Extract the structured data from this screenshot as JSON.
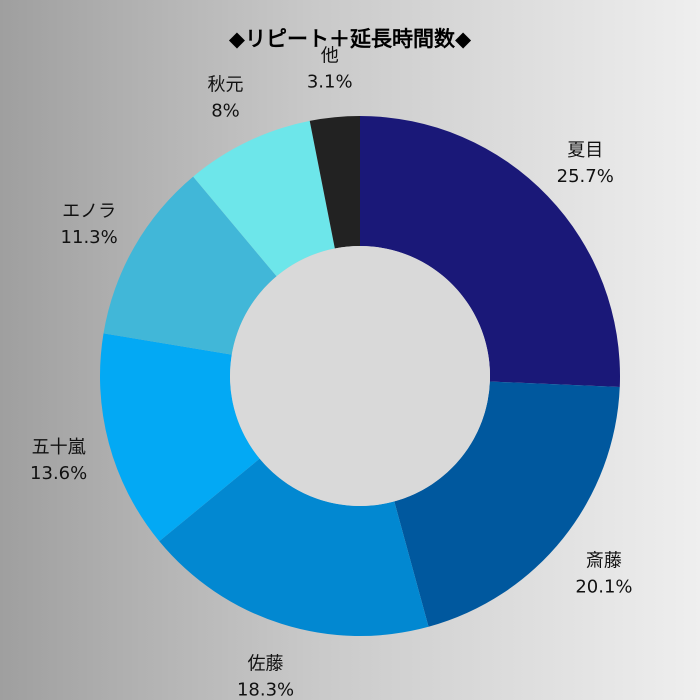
{
  "chart_data": {
    "type": "pie",
    "variant": "donut",
    "title": "◆リピート＋延長時間数◆",
    "categories": [
      "夏目",
      "斎藤",
      "佐藤",
      "五十嵐",
      "エノラ",
      "秋元",
      "他"
    ],
    "value_labels": [
      "25.7%",
      "20.1%",
      "18.3%",
      "13.6%",
      "11.3%",
      "8%",
      "3.1%"
    ],
    "values": [
      25.7,
      20.1,
      18.3,
      13.6,
      11.3,
      8,
      3.1
    ],
    "unit": "%",
    "colors": [
      "#1a1878",
      "#00589e",
      "#0288d1",
      "#03a9f4",
      "#41b7d8",
      "#6de6ea",
      "#222222"
    ],
    "center_color": "#d9d9d9",
    "start_angle": "12 o'clock",
    "direction": "clockwise",
    "legend": "none (labels outside slices)"
  }
}
